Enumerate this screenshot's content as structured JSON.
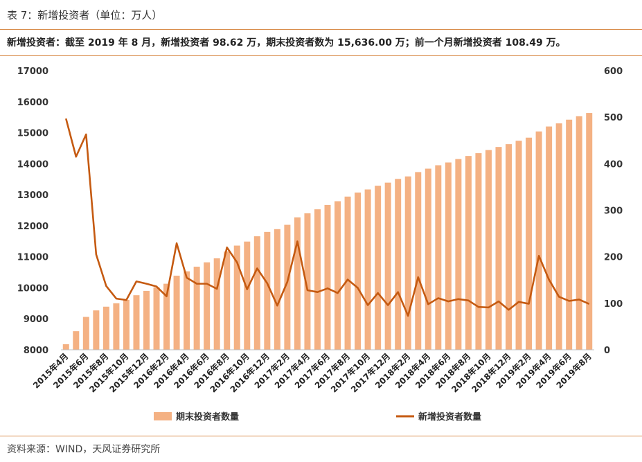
{
  "header": {
    "title": "表 7：新增投资者（单位：万人）",
    "subtitle": "新增投资者：截至 2019 年 8 月，新增投资者 98.62 万，期末投资者数为 15,636.00 万；前一个月新增投资者 108.49 万。"
  },
  "footer": {
    "source": "资料来源：WIND，天风证券研究所"
  },
  "colors": {
    "bar": "#f4b183",
    "line": "#c55a11",
    "rule": "#d88c4a"
  },
  "chart_data": {
    "type": "bar+line",
    "categories": [
      "2015年4月",
      "2015年5月",
      "2015年6月",
      "2015年7月",
      "2015年8月",
      "2015年9月",
      "2015年10月",
      "2015年11月",
      "2015年12月",
      "2016年1月",
      "2016年2月",
      "2016年3月",
      "2016年4月",
      "2016年5月",
      "2016年6月",
      "2016年7月",
      "2016年8月",
      "2016年9月",
      "2016年10月",
      "2016年11月",
      "2016年12月",
      "2017年1月",
      "2017年2月",
      "2017年3月",
      "2017年4月",
      "2017年5月",
      "2017年6月",
      "2017年7月",
      "2017年8月",
      "2017年9月",
      "2017年10月",
      "2017年11月",
      "2017年12月",
      "2018年1月",
      "2018年2月",
      "2018年3月",
      "2018年4月",
      "2018年5月",
      "2018年6月",
      "2018年7月",
      "2018年8月",
      "2018年9月",
      "2018年10月",
      "2018年11月",
      "2018年12月",
      "2019年1月",
      "2019年2月",
      "2019年3月",
      "2019年4月",
      "2019年5月",
      "2019年6月",
      "2019年7月",
      "2019年8月"
    ],
    "x_tick_labels": [
      "2015年4月",
      "2015年6月",
      "2015年8月",
      "2015年10月",
      "2015年12月",
      "2016年2月",
      "2016年4月",
      "2016年6月",
      "2016年8月",
      "2016年10月",
      "2016年12月",
      "2017年2月",
      "2017年4月",
      "2017年6月",
      "2017年8月",
      "2017年10月",
      "2017年12月",
      "2018年2月",
      "2018年4月",
      "2018年6月",
      "2018年8月",
      "2018年10月",
      "2018年12月",
      "2019年2月",
      "2019年4月",
      "2019年6月",
      "2019年8月"
    ],
    "series": [
      {
        "name": "期末投资者数量",
        "type": "bar",
        "axis": "left",
        "values": [
          8180,
          8600,
          9060,
          9270,
          9390,
          9500,
          9610,
          9760,
          9900,
          10010,
          10130,
          10390,
          10530,
          10680,
          10820,
          10950,
          11170,
          11360,
          11490,
          11660,
          11800,
          11890,
          12030,
          12270,
          12400,
          12530,
          12670,
          12790,
          12940,
          13070,
          13170,
          13290,
          13390,
          13510,
          13590,
          13730,
          13840,
          13950,
          14040,
          14150,
          14250,
          14340,
          14440,
          14540,
          14630,
          14740,
          14840,
          15040,
          15200,
          15300,
          15420,
          15530,
          15636
        ]
      },
      {
        "name": "新增投资者数量",
        "type": "line",
        "axis": "right",
        "values": [
          497,
          415,
          463,
          205,
          137,
          110,
          107,
          147,
          142,
          136,
          115,
          229,
          155,
          142,
          142,
          131,
          220,
          188,
          130,
          175,
          143,
          95,
          146,
          233,
          128,
          124,
          132,
          122,
          151,
          133,
          96,
          122,
          96,
          124,
          73,
          156,
          98,
          111,
          104,
          109,
          106,
          92,
          91,
          104,
          86,
          103,
          99,
          202,
          151,
          114,
          105,
          108,
          98.62
        ]
      }
    ],
    "y_left": {
      "range": [
        8000,
        17000
      ],
      "ticks": [
        "8000",
        "9000",
        "10000",
        "11000",
        "12000",
        "13000",
        "14000",
        "15000",
        "16000",
        "17000"
      ]
    },
    "y_right": {
      "range": [
        0,
        600
      ],
      "ticks": [
        "0",
        "100",
        "200",
        "300",
        "400",
        "500",
        "600"
      ]
    },
    "legend": {
      "position": "bottom",
      "items": [
        "期末投资者数量",
        "新增投资者数量"
      ]
    },
    "grid": false
  }
}
